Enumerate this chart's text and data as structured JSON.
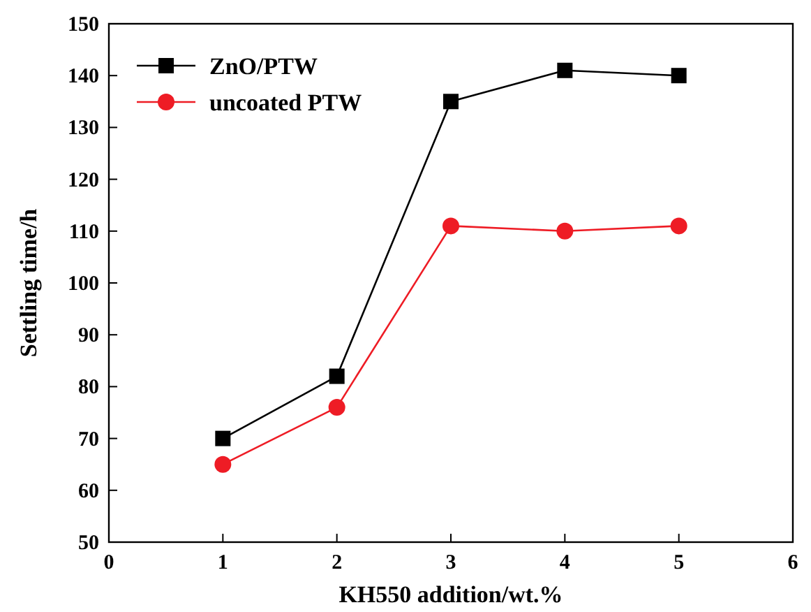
{
  "chart_data": {
    "type": "line",
    "xlabel": "KH550 addition/wt.%",
    "ylabel": "Settling time/h",
    "x": [
      1,
      2,
      3,
      4,
      5
    ],
    "series": [
      {
        "name": "ZnO/PTW",
        "color": "#000000",
        "marker": "square",
        "values": [
          70,
          82,
          135,
          141,
          140
        ]
      },
      {
        "name": "uncoated PTW",
        "color": "#ee1c25",
        "marker": "circle",
        "values": [
          65,
          76,
          111,
          110,
          111
        ]
      }
    ],
    "xlim": [
      0,
      6
    ],
    "xticks": [
      0,
      1,
      2,
      3,
      4,
      5,
      6
    ],
    "ylim": [
      50,
      150
    ],
    "yticks": [
      50,
      60,
      70,
      80,
      90,
      100,
      110,
      120,
      130,
      140,
      150
    ],
    "legend": "top left",
    "line_style": "solid"
  }
}
